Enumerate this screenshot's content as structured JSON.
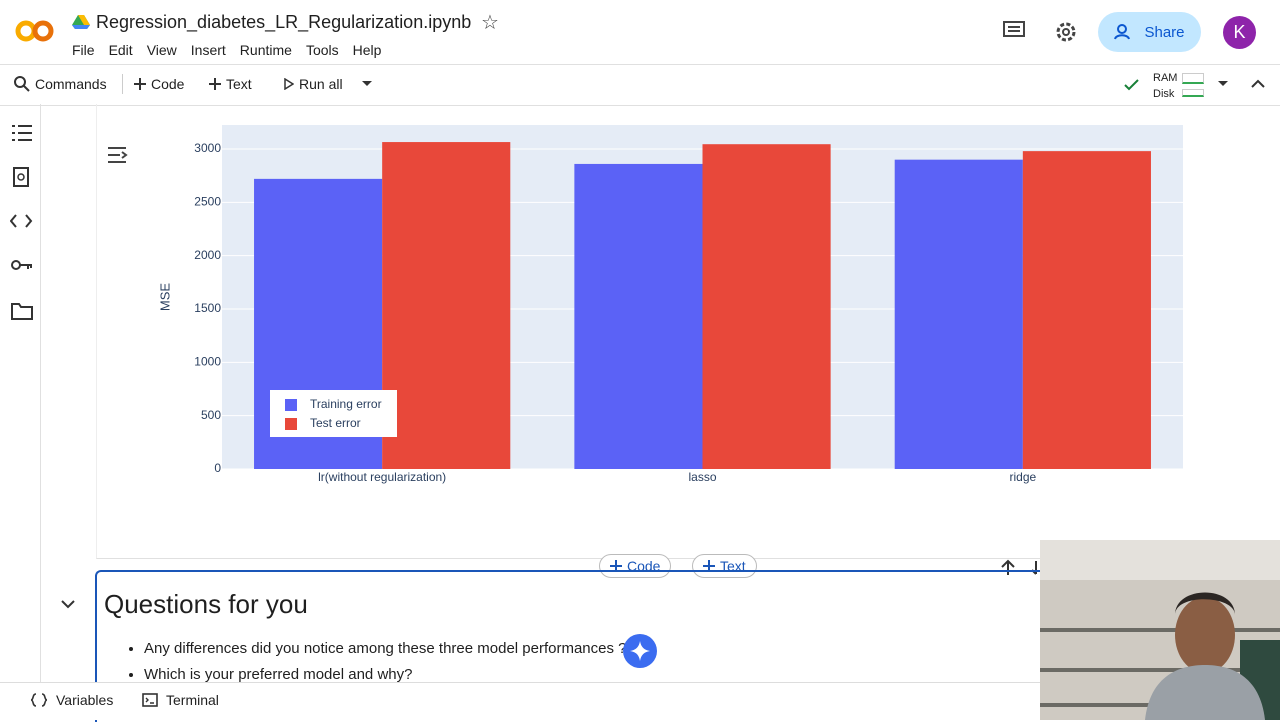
{
  "header": {
    "title": "Regression_diabetes_LR_Regularization.ipynb",
    "menu": [
      "File",
      "Edit",
      "View",
      "Insert",
      "Runtime",
      "Tools",
      "Help"
    ],
    "share": "Share",
    "avatar": "K"
  },
  "toolbar": {
    "commands": "Commands",
    "code": "Code",
    "text": "Text",
    "run_all": "Run all",
    "ram": "RAM",
    "disk": "Disk"
  },
  "chart_data": {
    "type": "bar",
    "y_label": "MSE",
    "categories": [
      "lr(without regularization)",
      "lasso",
      "ridge"
    ],
    "series": [
      {
        "name": "Training error",
        "color": "#5b62f6",
        "values": [
          2720,
          2860,
          2900
        ]
      },
      {
        "name": "Test error",
        "color": "#e8483a",
        "values": [
          3065,
          3045,
          2980
        ]
      }
    ],
    "ylim": [
      0,
      3225
    ],
    "yticks": [
      0,
      500,
      1000,
      1500,
      2000,
      2500,
      3000
    ],
    "grid": true
  },
  "cell_toolbar": {
    "code": "Code",
    "text": "Text"
  },
  "markdown": {
    "heading": "Questions for you",
    "bullets": [
      "Any differences did you notice among these three model performances ?",
      "Which is your preferred model and why?"
    ]
  },
  "footer": {
    "variables": "Variables",
    "terminal": "Terminal"
  }
}
